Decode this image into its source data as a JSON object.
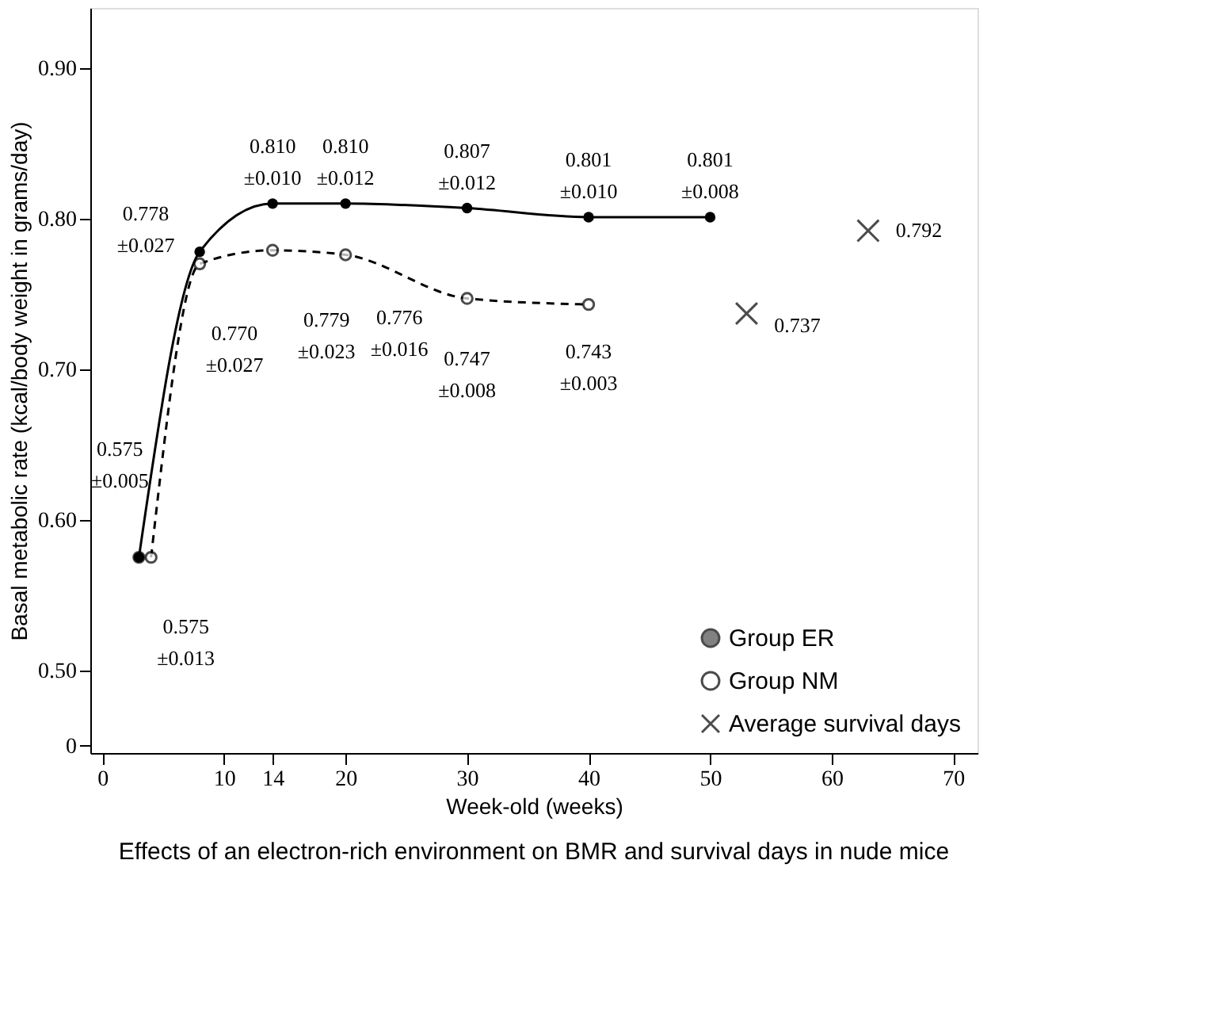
{
  "chart_data": {
    "type": "line",
    "title": "Effects of an electron-rich environment on BMR and survival days in nude mice",
    "xlabel": "Week-old (weeks)",
    "ylabel": "Basal metabolic rate (kcal/body weight in grams/day)",
    "xlim": [
      -1,
      72
    ],
    "xticks": [
      0,
      10,
      14,
      20,
      30,
      40,
      50,
      60,
      70
    ],
    "ylim": [
      0.445,
      0.94
    ],
    "yticks": [
      {
        "value": 0.45,
        "label": "0"
      },
      {
        "value": 0.5,
        "label": "0.50"
      },
      {
        "value": 0.6,
        "label": "0.60"
      },
      {
        "value": 0.7,
        "label": "0.70"
      },
      {
        "value": 0.8,
        "label": "0.80"
      },
      {
        "value": 0.9,
        "label": "0.90"
      }
    ],
    "grid": false,
    "legend": "bottom right",
    "series": [
      {
        "name": "Group ER",
        "color": "#000000",
        "marker": "circle",
        "line_style": "solid",
        "x": [
          3,
          8,
          14,
          20,
          30,
          40,
          50
        ],
        "values": [
          0.575,
          0.778,
          0.81,
          0.81,
          0.807,
          0.801,
          0.801
        ],
        "value_labels": [
          "0.575\n±0.005",
          "0.778\n±0.027",
          "0.810\n±0.010",
          "0.810\n±0.012",
          "0.807\n±0.012",
          "0.801\n±0.010",
          "0.801\n±0.008"
        ]
      },
      {
        "name": "Group NM",
        "color": "#000000",
        "marker": "circle",
        "line_style": "dashed",
        "x": [
          4,
          8,
          14,
          20,
          30,
          40
        ],
        "values": [
          0.575,
          0.77,
          0.779,
          0.776,
          0.747,
          0.743
        ],
        "value_labels": [
          "0.575\n±0.013",
          "0.770\n±0.027",
          "0.779\n±0.023",
          "0.776\n±0.016",
          "0.747\n±0.008",
          "0.743\n±0.003"
        ]
      },
      {
        "name": "Average survival days",
        "type": "scatter",
        "color": "#000000",
        "marker": "cross",
        "x": [
          63,
          53
        ],
        "values": [
          0.792,
          0.737
        ],
        "value_labels": [
          "0.792",
          "0.737"
        ]
      }
    ]
  }
}
